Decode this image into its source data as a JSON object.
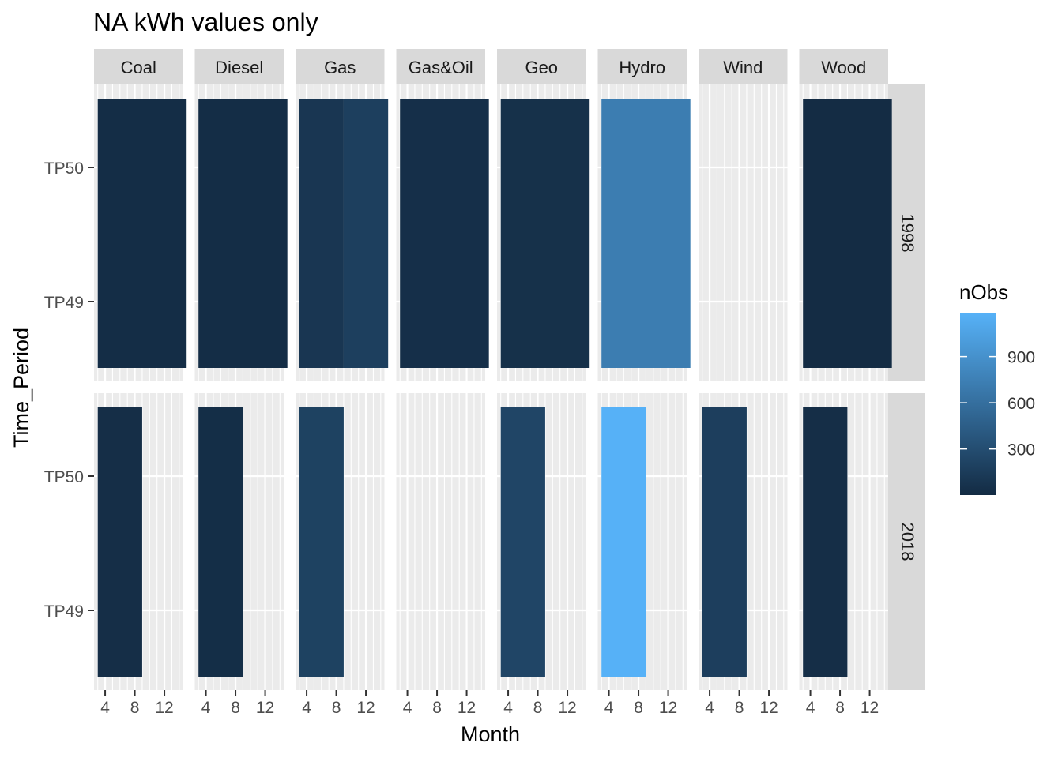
{
  "chart_data": {
    "type": "heatmap",
    "title": "NA kWh values only",
    "xlabel": "Month",
    "ylabel": "Time_Period",
    "facet_cols": [
      "Coal",
      "Diesel",
      "Gas",
      "Gas&Oil",
      "Geo",
      "Hydro",
      "Wind",
      "Wood"
    ],
    "facet_rows": [
      "1998",
      "2018"
    ],
    "x_ticks": [
      4,
      8,
      12
    ],
    "y_categories": [
      "TP49",
      "TP50"
    ],
    "xlim": [
      2.5,
      14.5
    ],
    "legend": {
      "title": "nObs",
      "ticks": [
        300,
        600,
        900
      ],
      "min": 1,
      "max": 1180,
      "position": "right",
      "colors": [
        "#132B43",
        "#56B1F7"
      ]
    },
    "cells": [
      {
        "row": "1998",
        "fuel": "Coal",
        "x0": 3,
        "x1": 15,
        "value": 20
      },
      {
        "row": "1998",
        "fuel": "Diesel",
        "x0": 3,
        "x1": 15,
        "value": 20
      },
      {
        "row": "1998",
        "fuel": "Gas",
        "x0": 3,
        "x1": 9,
        "value": 100
      },
      {
        "row": "1998",
        "fuel": "Gas",
        "x0": 9,
        "x1": 15,
        "value": 180
      },
      {
        "row": "1998",
        "fuel": "Gas&Oil",
        "x0": 3,
        "x1": 15,
        "value": 40
      },
      {
        "row": "1998",
        "fuel": "Geo",
        "x0": 3,
        "x1": 15,
        "value": 50
      },
      {
        "row": "1998",
        "fuel": "Hydro",
        "x0": 3,
        "x1": 15,
        "value": 720
      },
      {
        "row": "1998",
        "fuel": "Wood",
        "x0": 3,
        "x1": 15,
        "value": 10
      },
      {
        "row": "2018",
        "fuel": "Coal",
        "x0": 3,
        "x1": 9,
        "value": 30
      },
      {
        "row": "2018",
        "fuel": "Diesel",
        "x0": 3,
        "x1": 9,
        "value": 25
      },
      {
        "row": "2018",
        "fuel": "Gas",
        "x0": 3,
        "x1": 9,
        "value": 200
      },
      {
        "row": "2018",
        "fuel": "Geo",
        "x0": 3,
        "x1": 9,
        "value": 230
      },
      {
        "row": "2018",
        "fuel": "Hydro",
        "x0": 3,
        "x1": 9,
        "value": 1180
      },
      {
        "row": "2018",
        "fuel": "Wind",
        "x0": 3,
        "x1": 9,
        "value": 170
      },
      {
        "row": "2018",
        "fuel": "Wood",
        "x0": 3,
        "x1": 9,
        "value": 30
      }
    ]
  }
}
